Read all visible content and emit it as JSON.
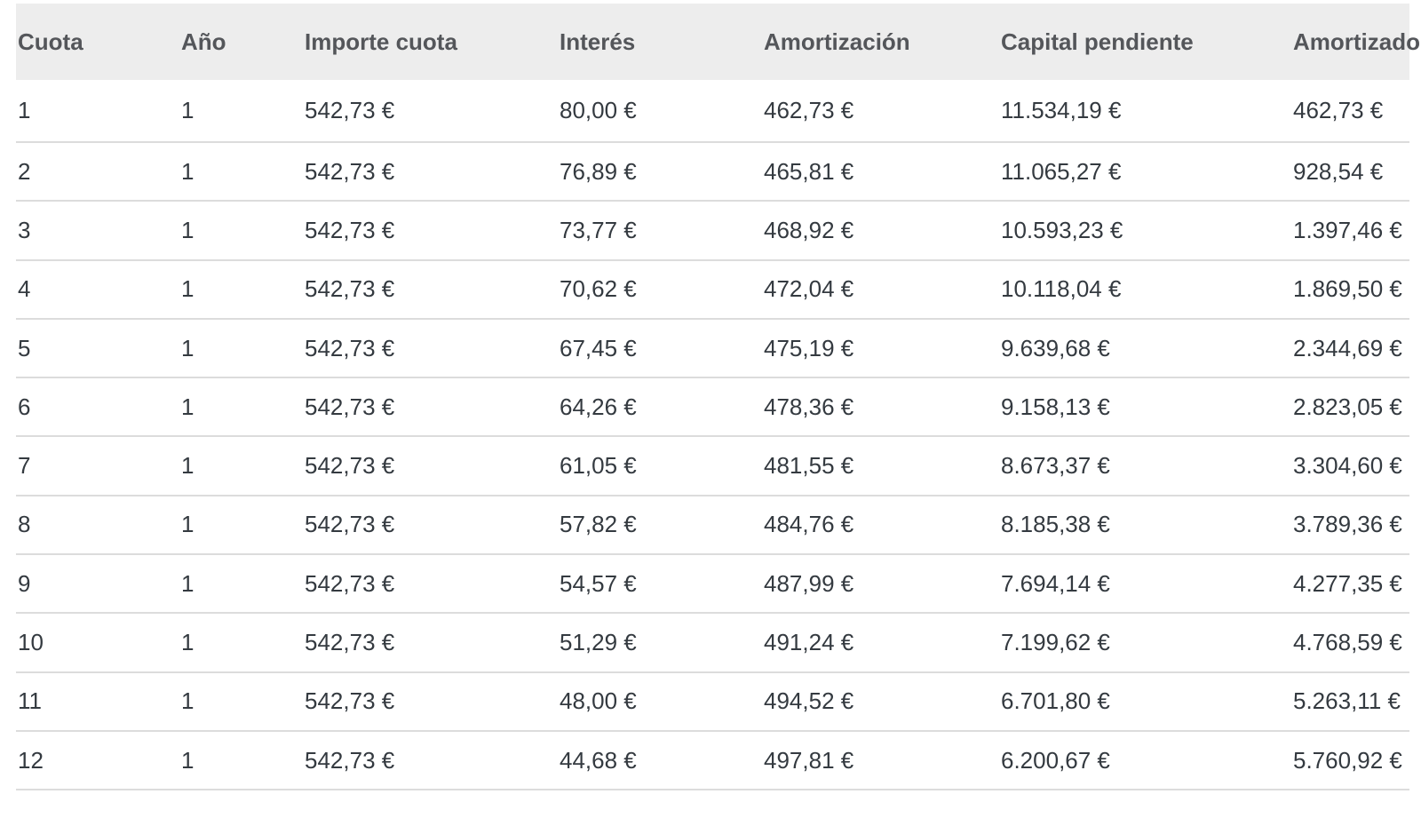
{
  "chart_data": {
    "type": "table",
    "columns": [
      "Cuota",
      "Año",
      "Importe cuota",
      "Interés",
      "Amortización",
      "Capital pendiente",
      "Amortizado"
    ],
    "rows": [
      [
        "1",
        "1",
        "542,73 €",
        "80,00 €",
        "462,73 €",
        "11.534,19 €",
        "462,73 €"
      ],
      [
        "2",
        "1",
        "542,73 €",
        "76,89 €",
        "465,81 €",
        "11.065,27 €",
        "928,54 €"
      ],
      [
        "3",
        "1",
        "542,73 €",
        "73,77 €",
        "468,92 €",
        "10.593,23 €",
        "1.397,46 €"
      ],
      [
        "4",
        "1",
        "542,73 €",
        "70,62 €",
        "472,04 €",
        "10.118,04 €",
        "1.869,50 €"
      ],
      [
        "5",
        "1",
        "542,73 €",
        "67,45 €",
        "475,19 €",
        "9.639,68 €",
        "2.344,69 €"
      ],
      [
        "6",
        "1",
        "542,73 €",
        "64,26 €",
        "478,36 €",
        "9.158,13 €",
        "2.823,05 €"
      ],
      [
        "7",
        "1",
        "542,73 €",
        "61,05 €",
        "481,55 €",
        "8.673,37 €",
        "3.304,60 €"
      ],
      [
        "8",
        "1",
        "542,73 €",
        "57,82 €",
        "484,76 €",
        "8.185,38 €",
        "3.789,36 €"
      ],
      [
        "9",
        "1",
        "542,73 €",
        "54,57 €",
        "487,99 €",
        "7.694,14 €",
        "4.277,35 €"
      ],
      [
        "10",
        "1",
        "542,73 €",
        "51,29 €",
        "491,24 €",
        "7.199,62 €",
        "4.768,59 €"
      ],
      [
        "11",
        "1",
        "542,73 €",
        "48,00 €",
        "494,52 €",
        "6.701,80 €",
        "5.263,11 €"
      ],
      [
        "12",
        "1",
        "542,73 €",
        "44,68 €",
        "497,81 €",
        "6.200,67 €",
        "5.760,92 €"
      ]
    ]
  },
  "colors": {
    "header_bg": "#ededed",
    "header_text": "#54565a",
    "body_text": "#343a40",
    "row_border": "#dcdcdc"
  }
}
